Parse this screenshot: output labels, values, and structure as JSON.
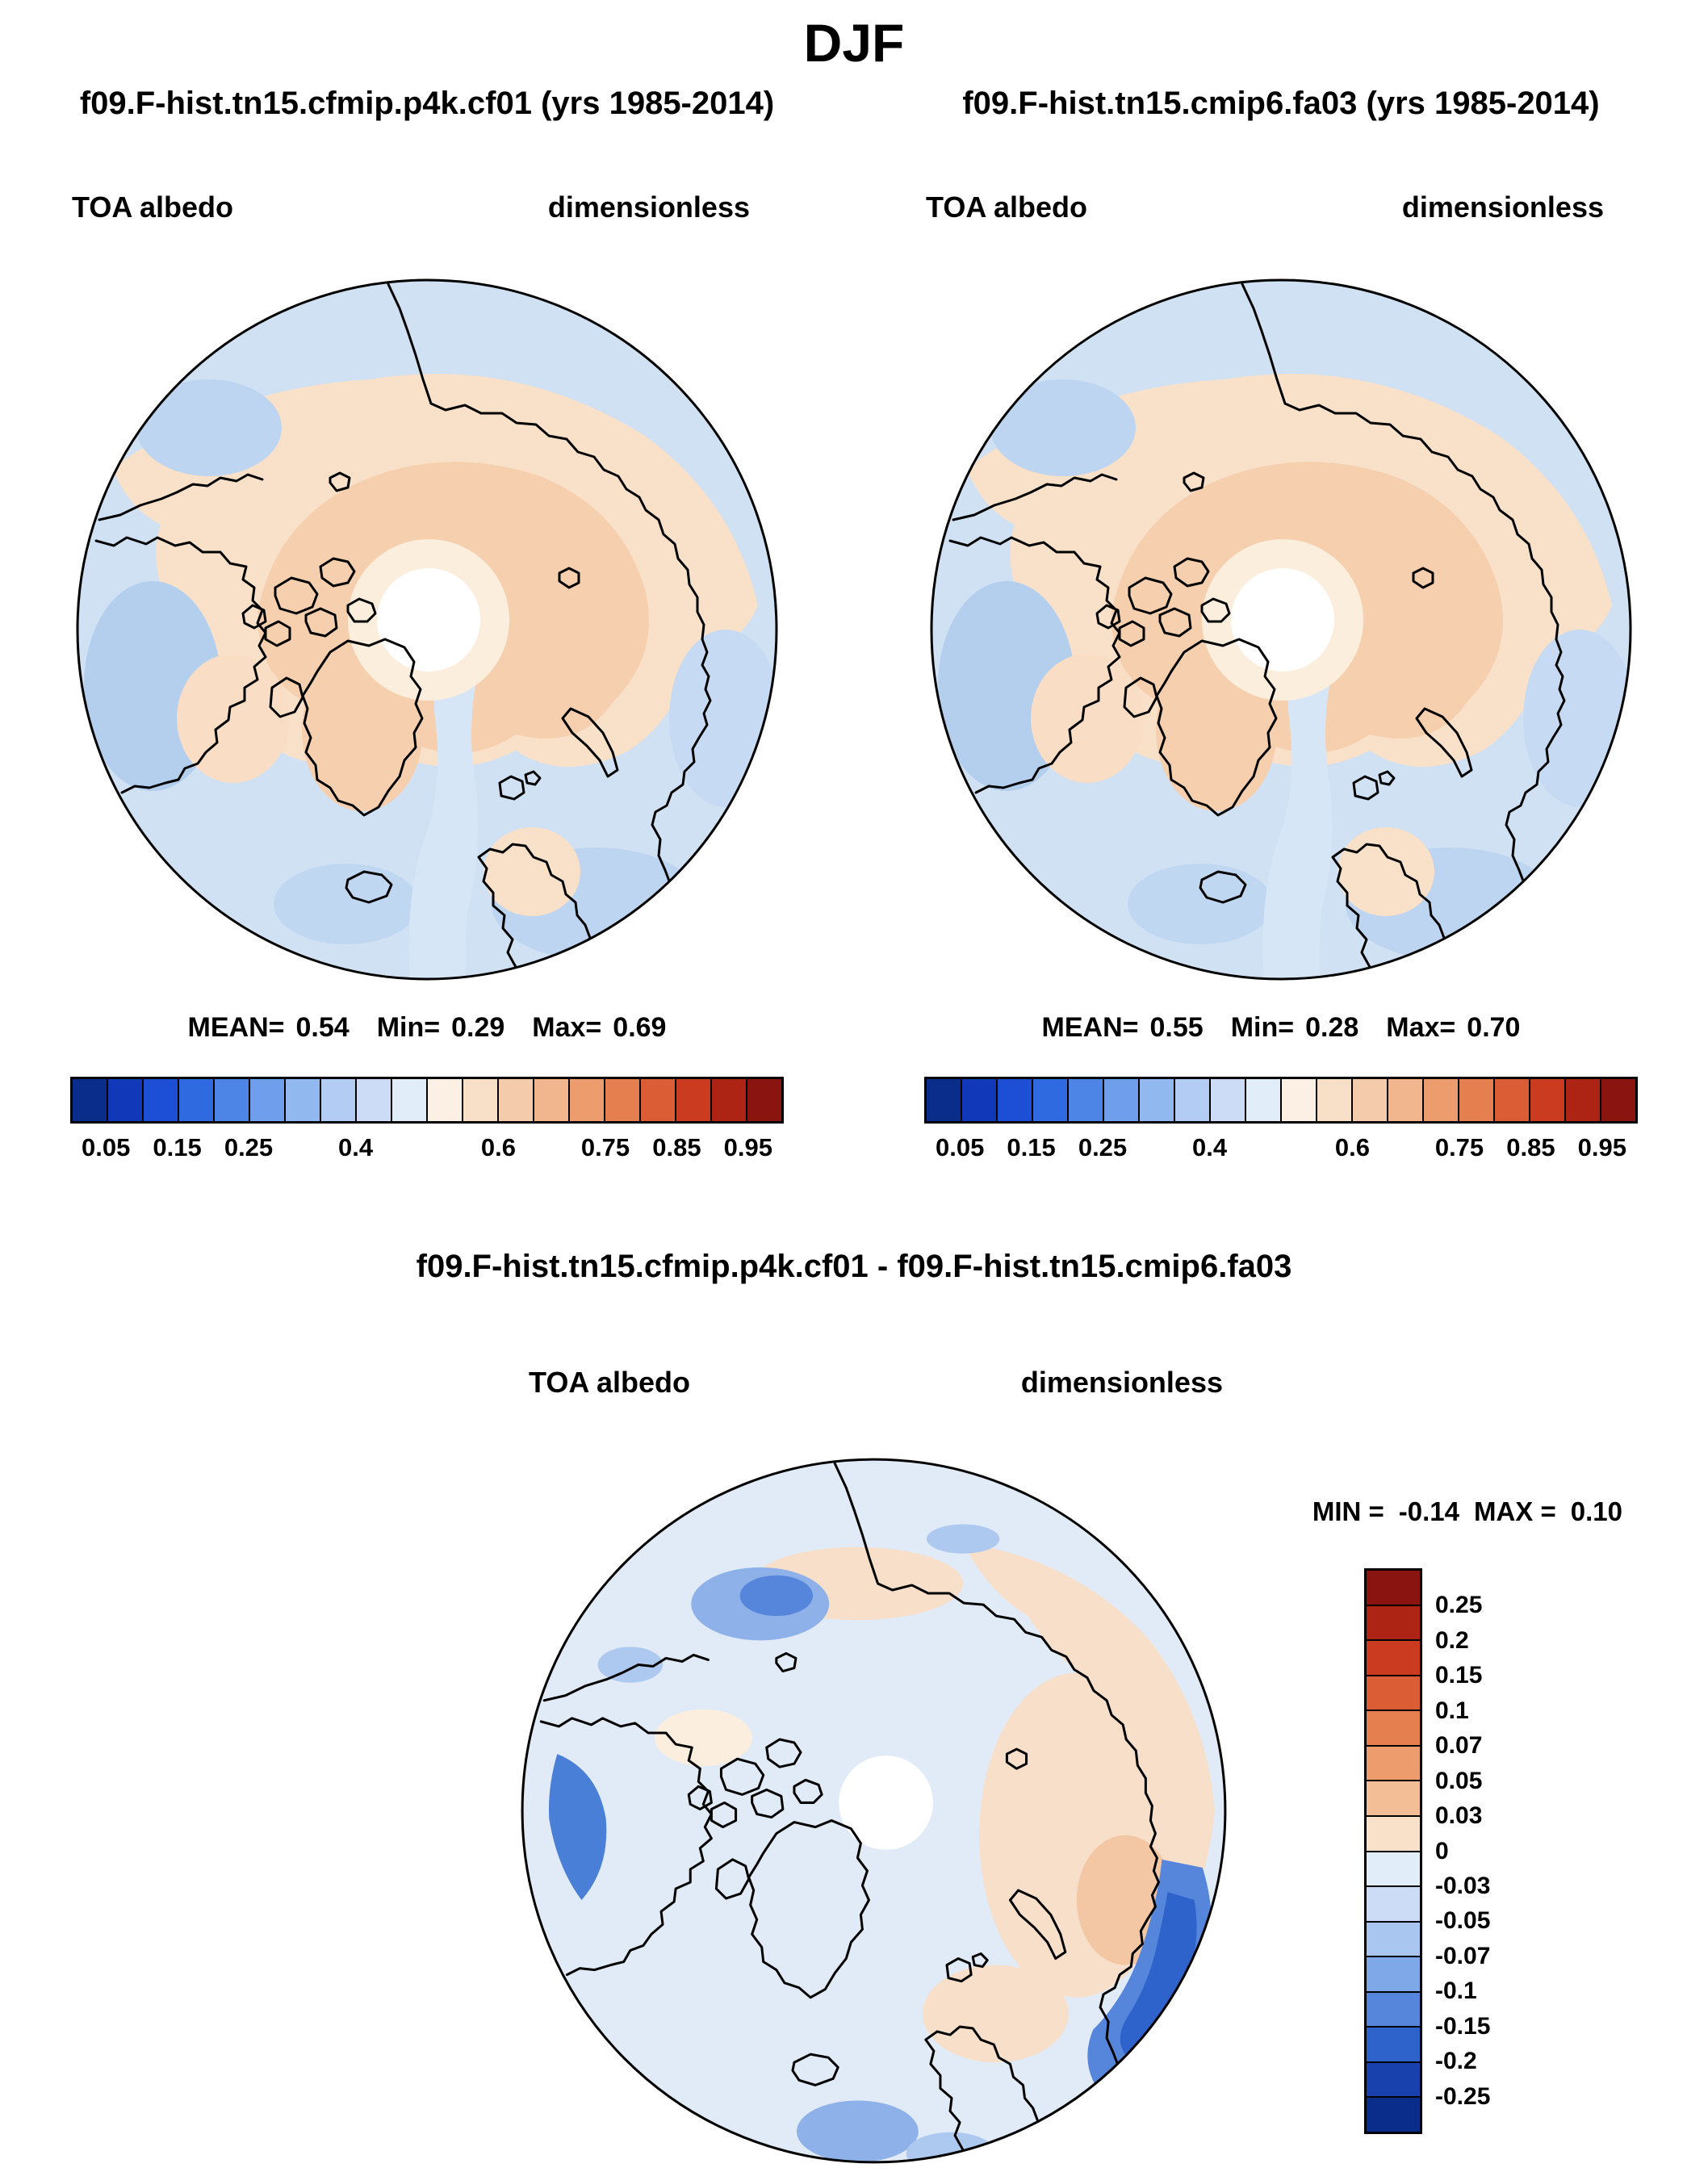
{
  "title": "DJF",
  "panels": [
    {
      "run_title": "f09.F-hist.tn15.cfmip.p4k.cf01 (yrs 1985-2014)",
      "field": "TOA albedo",
      "units": "dimensionless",
      "stats": {
        "mean_label": "MEAN=",
        "mean": "0.54",
        "min_label": "Min=",
        "min": "0.29",
        "max_label": "Max=",
        "max": "0.69"
      }
    },
    {
      "run_title": "f09.F-hist.tn15.cmip6.fa03 (yrs 1985-2014)",
      "field": "TOA albedo",
      "units": "dimensionless",
      "stats": {
        "mean_label": "MEAN=",
        "mean": "0.55",
        "min_label": "Min=",
        "min": "0.28",
        "max_label": "Max=",
        "max": "0.70"
      }
    }
  ],
  "diff": {
    "title": "f09.F-hist.tn15.cfmip.p4k.cf01 - f09.F-hist.tn15.cmip6.fa03",
    "field": "TOA albedo",
    "units": "dimensionless",
    "stats": {
      "min_label": "MIN =",
      "min": "-0.14",
      "max_label": "MAX =",
      "max": "0.10"
    }
  },
  "colorbars": {
    "albedo": {
      "colors": [
        "#0a2c8a",
        "#1038b8",
        "#1c4fd6",
        "#2f6ae0",
        "#4c85e6",
        "#6f9fec",
        "#92b8f0",
        "#b2ccf4",
        "#ccdcf7",
        "#e2edfa",
        "#fbf0e3",
        "#f8dfc8",
        "#f5ccab",
        "#f1b68d",
        "#ec9c6d",
        "#e67f4f",
        "#da5d35",
        "#ca3b20",
        "#ad2414",
        "#8a1410"
      ],
      "ticks": [
        {
          "label": "0.05",
          "pos": 0.05
        },
        {
          "label": "0.15",
          "pos": 0.15
        },
        {
          "label": "0.25",
          "pos": 0.25
        },
        {
          "label": "0.4",
          "pos": 0.4
        },
        {
          "label": "0.6",
          "pos": 0.6
        },
        {
          "label": "0.75",
          "pos": 0.75
        },
        {
          "label": "0.85",
          "pos": 0.85
        },
        {
          "label": "0.95",
          "pos": 0.95
        }
      ]
    },
    "diff": {
      "colors": [
        "#8a1410",
        "#ad2414",
        "#ca3b20",
        "#da5d35",
        "#e67f4f",
        "#ec9c6d",
        "#f3bd96",
        "#f9e0c9",
        "#e2edfa",
        "#ccdcf7",
        "#a9c6f0",
        "#7fa8e8",
        "#5586dc",
        "#2f63cc",
        "#1841ae",
        "#0a2c8a"
      ],
      "ticks": [
        {
          "label": "0.25",
          "pos": 0.0625
        },
        {
          "label": "0.2",
          "pos": 0.125
        },
        {
          "label": "0.15",
          "pos": 0.1875
        },
        {
          "label": "0.1",
          "pos": 0.25
        },
        {
          "label": "0.07",
          "pos": 0.3125
        },
        {
          "label": "0.05",
          "pos": 0.375
        },
        {
          "label": "0.03",
          "pos": 0.4375
        },
        {
          "label": "0",
          "pos": 0.5
        },
        {
          "label": "-0.03",
          "pos": 0.5625
        },
        {
          "label": "-0.05",
          "pos": 0.625
        },
        {
          "label": "-0.07",
          "pos": 0.6875
        },
        {
          "label": "-0.1",
          "pos": 0.75
        },
        {
          "label": "-0.15",
          "pos": 0.8125
        },
        {
          "label": "-0.2",
          "pos": 0.875
        },
        {
          "label": "-0.25",
          "pos": 0.9375
        }
      ]
    }
  },
  "chart_data": [
    {
      "type": "heatmap",
      "variant": "north-polar-stereographic-contour-map",
      "season": "DJF",
      "title": "f09.F-hist.tn15.cfmip.p4k.cf01 (yrs 1985-2014)",
      "variable": "TOA albedo",
      "units": "dimensionless",
      "stats": {
        "mean": 0.54,
        "min": 0.29,
        "max": 0.69
      },
      "colorbar": {
        "orientation": "horizontal",
        "tick_labels": [
          0.05,
          0.15,
          0.25,
          0.4,
          0.6,
          0.75,
          0.85,
          0.95
        ],
        "n_colors": 20,
        "palette": "blue-white-red diverging",
        "range": [
          0,
          1
        ]
      },
      "legend_position": "bottom"
    },
    {
      "type": "heatmap",
      "variant": "north-polar-stereographic-contour-map",
      "season": "DJF",
      "title": "f09.F-hist.tn15.cmip6.fa03 (yrs 1985-2014)",
      "variable": "TOA albedo",
      "units": "dimensionless",
      "stats": {
        "mean": 0.55,
        "min": 0.28,
        "max": 0.7
      },
      "colorbar": {
        "orientation": "horizontal",
        "tick_labels": [
          0.05,
          0.15,
          0.25,
          0.4,
          0.6,
          0.75,
          0.85,
          0.95
        ],
        "n_colors": 20,
        "palette": "blue-white-red diverging",
        "range": [
          0,
          1
        ]
      },
      "legend_position": "bottom"
    },
    {
      "type": "heatmap",
      "variant": "north-polar-stereographic-contour-map",
      "season": "DJF",
      "title": "f09.F-hist.tn15.cfmip.p4k.cf01 - f09.F-hist.tn15.cmip6.fa03",
      "variable": "TOA albedo",
      "units": "dimensionless",
      "stats": {
        "min": -0.14,
        "max": 0.1
      },
      "colorbar": {
        "orientation": "vertical",
        "tick_labels": [
          0.25,
          0.2,
          0.15,
          0.1,
          0.07,
          0.05,
          0.03,
          0,
          -0.03,
          -0.05,
          -0.07,
          -0.1,
          -0.15,
          -0.2,
          -0.25
        ],
        "n_colors": 16,
        "palette": "blue-white-red diverging"
      },
      "legend_position": "right"
    }
  ]
}
